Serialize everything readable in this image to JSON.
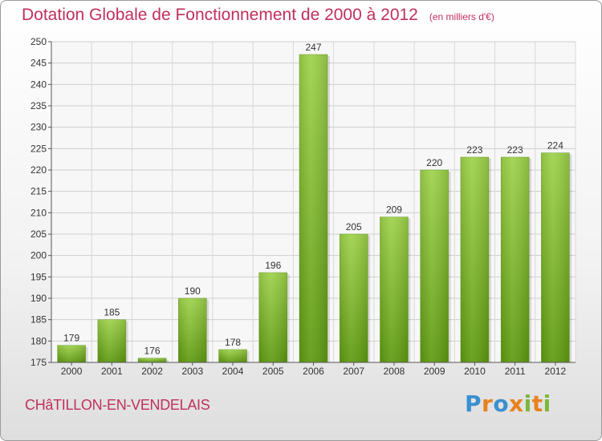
{
  "chart_data": {
    "type": "bar",
    "title": "Dotation Globale de Fonctionnement de 2000 à 2012",
    "subtitle": "(en milliers d'€)",
    "categories": [
      "2000",
      "2001",
      "2002",
      "2003",
      "2004",
      "2005",
      "2006",
      "2007",
      "2008",
      "2009",
      "2010",
      "2011",
      "2012"
    ],
    "values": [
      179,
      185,
      176,
      190,
      178,
      196,
      247,
      205,
      209,
      220,
      223,
      223,
      224
    ],
    "ylim": [
      175,
      250
    ],
    "yticks": [
      175,
      180,
      185,
      190,
      195,
      200,
      205,
      210,
      215,
      220,
      225,
      230,
      235,
      240,
      245,
      250
    ],
    "grid": true,
    "bar_color_top": "#9ed24a",
    "bar_color_bottom": "#5e9a10"
  },
  "footer": {
    "commune": "CHâTILLON-EN-VENDELAIS",
    "logo_letters": [
      {
        "ch": "P",
        "color": "#3a8fd0"
      },
      {
        "ch": "r",
        "color": "#e8821e"
      },
      {
        "ch": "o",
        "color": "#3a8fd0"
      },
      {
        "ch": "x",
        "color": "#e8821e"
      },
      {
        "ch": "i",
        "color": "#7ab83a"
      },
      {
        "ch": "t",
        "color": "#e8821e"
      },
      {
        "ch": "i",
        "color": "#7ab83a"
      }
    ]
  }
}
